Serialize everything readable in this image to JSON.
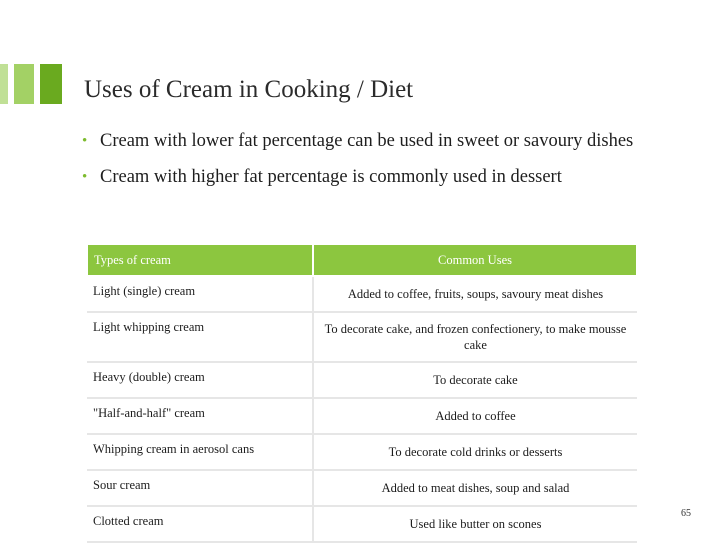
{
  "slide": {
    "title": "Uses of Cream in Cooking / Diet",
    "bullets": [
      "Cream with lower fat percentage can be used in sweet or savoury dishes",
      "Cream with higher fat percentage is commonly used in dessert"
    ],
    "table": {
      "headers": [
        "Types of cream",
        "Common Uses"
      ],
      "rows": [
        {
          "type": "Light (single) cream",
          "use": "Added to coffee, fruits, soups, savoury meat dishes"
        },
        {
          "type": "Light whipping cream",
          "use": "To decorate cake, and frozen confectionery, to make mousse cake"
        },
        {
          "type": "Heavy (double) cream",
          "use": "To decorate cake"
        },
        {
          "type": "\"Half-and-half\" cream",
          "use": "Added to coffee"
        },
        {
          "type": "Whipping cream in aerosol cans",
          "use": "To decorate cold drinks or desserts"
        },
        {
          "type": "Sour cream",
          "use": "Added to meat dishes, soup and salad"
        },
        {
          "type": "Clotted cream",
          "use": "Used like butter on scones"
        }
      ]
    },
    "page_number": "65"
  },
  "colors": {
    "accent": "#8cc63f",
    "row_divider": "#e6e6e6"
  }
}
